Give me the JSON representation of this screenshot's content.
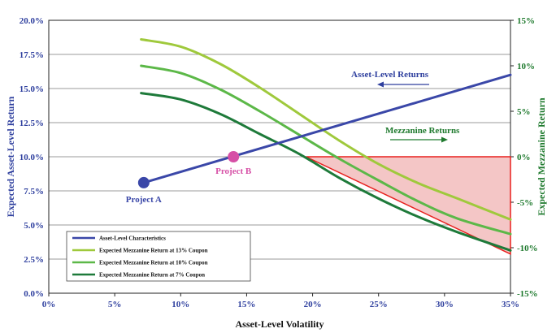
{
  "chart_data": {
    "type": "line",
    "xlabel": "Asset-Level Volatility",
    "ylabel_left": "Expected Asset-Level Return",
    "ylabel_right": "Expected Mezzanine Return",
    "xlim": [
      0,
      35
    ],
    "ylim_left": [
      0,
      20
    ],
    "ylim_right": [
      -15,
      15
    ],
    "x_ticks": [
      "0%",
      "5%",
      "10%",
      "15%",
      "20%",
      "25%",
      "30%",
      "35%"
    ],
    "y_left_ticks": [
      "0.0%",
      "2.5%",
      "5.0%",
      "7.5%",
      "10.0%",
      "12.5%",
      "15.0%",
      "17.5%",
      "20.0%"
    ],
    "y_right_ticks": [
      "-15%",
      "-10%",
      "-5%",
      "0%",
      "5%",
      "10%",
      "15%"
    ],
    "grid": true,
    "legend_position": "bottom-left",
    "series": [
      {
        "name": "Asset-Level Characteristics",
        "axis": "left",
        "color": "#3a47a8",
        "x": [
          7.2,
          35
        ],
        "y": [
          8.1,
          16.0
        ]
      },
      {
        "name": "Expected Mezzanine Return at 13% Coupon",
        "axis": "right",
        "color": "#9fc93c",
        "x": [
          7,
          10,
          13,
          16,
          19,
          22,
          25,
          28,
          31,
          35
        ],
        "y": [
          12.9,
          12.1,
          10.2,
          7.6,
          4.7,
          1.8,
          -0.8,
          -2.9,
          -4.6,
          -6.9
        ]
      },
      {
        "name": "Expected Mezzanine Return at 10% Coupon",
        "axis": "right",
        "color": "#5cb848",
        "x": [
          7,
          10,
          13,
          16,
          19,
          22,
          25,
          28,
          31,
          35
        ],
        "y": [
          10.0,
          9.2,
          7.4,
          5.0,
          2.4,
          -0.2,
          -2.6,
          -4.9,
          -6.8,
          -8.5
        ]
      },
      {
        "name": "Expected Mezzanine Return at 7% Coupon",
        "axis": "right",
        "color": "#1e7a3a",
        "x": [
          7,
          10,
          13,
          16,
          19,
          22,
          25,
          28,
          31,
          35
        ],
        "y": [
          7.0,
          6.3,
          4.7,
          2.5,
          0.3,
          -2.3,
          -4.6,
          -6.6,
          -8.3,
          -10.3
        ]
      }
    ],
    "points": [
      {
        "label": "Project A",
        "x": 7.2,
        "y": 8.1,
        "color": "#3a47a8"
      },
      {
        "label": "Project B",
        "x": 14,
        "y": 10.0,
        "color": "#d64fa6"
      }
    ],
    "shaded_region": {
      "axis": "right",
      "fill": "#f4c6c6",
      "stroke": "#e8211f",
      "vertices": [
        [
          19.5,
          0
        ],
        [
          35,
          0
        ],
        [
          35,
          -10.7
        ]
      ]
    },
    "annotations": [
      {
        "text": "Asset-Level Returns",
        "color": "#2e3f9e",
        "arrow_direction": "left"
      },
      {
        "text": "Mezzanine Returns",
        "color": "#1f7a2e",
        "arrow_direction": "right"
      }
    ]
  }
}
